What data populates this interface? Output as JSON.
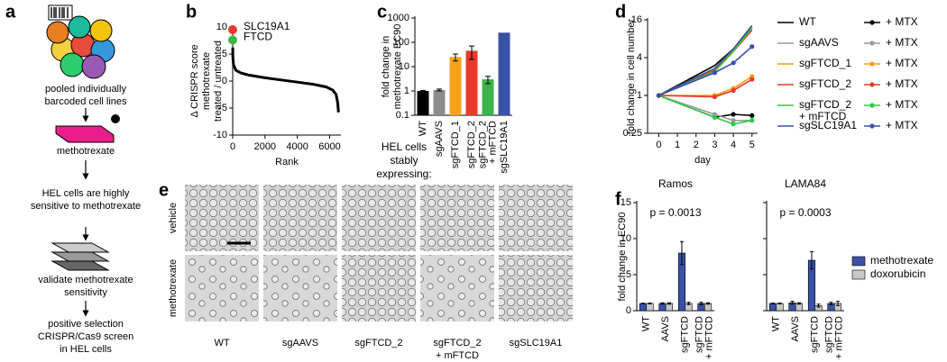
{
  "panel_labels": [
    "a",
    "b",
    "c",
    "d",
    "e",
    "f"
  ],
  "workflow": {
    "steps": [
      [
        "pooled individually",
        "barcoded cell lines"
      ],
      [
        "methotrexate"
      ],
      [
        "HEL cells are highly",
        "sensitive to methotrexate"
      ],
      [
        "validate methotrexate",
        "sensitivity"
      ],
      [
        "positive selection",
        "CRISPR/Cas9 screen",
        "in HEL cells"
      ]
    ]
  },
  "micrographs": {
    "rows": [
      "vehicle",
      "methotrexate"
    ],
    "columns": [
      [
        "WT"
      ],
      [
        "sgAAVS"
      ],
      [
        "sgFTCD_2"
      ],
      [
        "sgFTCD_2",
        "+ mFTCD"
      ],
      [
        "sgSLC19A1"
      ]
    ]
  },
  "chart_data": [
    {
      "type": "rank",
      "ylabel": [
        "Δ CRISPR score",
        "methotrexate",
        "treated / untreated"
      ],
      "xlabel": "Rank",
      "x": [
        3,
        10,
        50,
        200,
        500,
        1000,
        2000,
        3000,
        4000,
        5000,
        5800,
        6200,
        6400,
        6500,
        6550
      ],
      "values": [
        6.2,
        4.5,
        3,
        2,
        1.5,
        1.1,
        0.6,
        0.2,
        -0.2,
        -0.6,
        -1.1,
        -1.7,
        -2.5,
        -4,
        -5.8
      ],
      "color": "#000000",
      "highlights": [
        {
          "name": "SLC19A1",
          "x": 1,
          "value": 9.5,
          "color": "#e8392b"
        },
        {
          "name": "FTCD",
          "x": 2,
          "value": 7.6,
          "color": "#3cb44b"
        }
      ],
      "xlim": [
        0,
        6700
      ],
      "xticks": [
        0,
        2000,
        4000,
        6000
      ],
      "ylim": [
        -10,
        10
      ],
      "yticks": [
        -10,
        -5,
        0,
        5,
        10
      ]
    },
    {
      "type": "bar",
      "log_scale": true,
      "ylabel": [
        "fold change in",
        "methotrexate EC90"
      ],
      "categories": [
        "WT",
        "sgAAVS",
        "sgFTCD_1",
        "sgFTCD_2",
        [
          "sgFTCD_2",
          "+ mFTCD"
        ],
        "sgSLC19A1"
      ],
      "values": [
        1,
        1.1,
        25,
        45,
        3,
        250
      ],
      "errors": [
        0.05,
        0.1,
        8,
        25,
        1,
        null
      ],
      "colors": [
        "#000000",
        "#8c8c8c",
        "#f7a21b",
        "#e8392b",
        "#3cb44b",
        "#3a52a6"
      ],
      "ylim": [
        0.1,
        1000
      ],
      "yticks": [
        0.1,
        1,
        10,
        100,
        1000
      ],
      "caption": [
        "HEL cells",
        "stably",
        "expressing:"
      ]
    },
    {
      "type": "line",
      "log_scale": true,
      "xlabel": "day",
      "ylabel": "fold change in cell number",
      "x": [
        0,
        3,
        4,
        5
      ],
      "xlim": [
        -0.6,
        5.3
      ],
      "xticks": [
        0,
        1,
        2,
        3,
        4,
        5
      ],
      "ylim": [
        0.25,
        16
      ],
      "yticks": [
        0.25,
        1,
        4,
        16
      ],
      "series": [
        {
          "name": "WT",
          "color": "#000000",
          "markers": false,
          "values": [
            1,
            3,
            5.5,
            12
          ]
        },
        {
          "name": "+ MTX",
          "color": "#000000",
          "markers": true,
          "values": [
            1,
            0.45,
            0.5,
            0.48
          ]
        },
        {
          "name": "sgAAVS",
          "color": "#999999",
          "markers": false,
          "values": [
            1,
            2.5,
            5,
            11
          ]
        },
        {
          "name": "+ MTX",
          "color": "#999999",
          "markers": true,
          "values": [
            1,
            0.5,
            0.4,
            0.4
          ]
        },
        {
          "name": "sgFTCD_1",
          "color": "#f39c12",
          "markers": false,
          "values": [
            1,
            2.6,
            5.2,
            11.5
          ]
        },
        {
          "name": "+ MTX",
          "color": "#f39c12",
          "markers": true,
          "values": [
            1,
            1,
            1.3,
            2
          ]
        },
        {
          "name": "sgFTCD_2",
          "color": "#e8392b",
          "markers": false,
          "values": [
            1,
            2.5,
            5,
            11
          ]
        },
        {
          "name": "+ MTX",
          "color": "#e8392b",
          "markers": true,
          "values": [
            1,
            0.95,
            1.2,
            1.8
          ]
        },
        {
          "name": [
            "sgFTCD_2",
            "+ mFTCD"
          ],
          "color": "#2ecc40",
          "markers": false,
          "values": [
            1,
            2.4,
            5,
            12
          ]
        },
        {
          "name": "+ MTX",
          "color": "#2ecc40",
          "markers": true,
          "values": [
            1,
            0.45,
            0.35,
            0.4
          ]
        },
        {
          "name": "sgSLC19A1",
          "color": "#3a52a6",
          "markers": false,
          "values": [
            1,
            2.7,
            5.5,
            13
          ]
        },
        {
          "name": "+ MTX",
          "color": "#3a52a6",
          "markers": true,
          "values": [
            1,
            2.3,
            3.3,
            6
          ]
        }
      ]
    },
    {
      "type": "grouped_bar",
      "title": "Ramos",
      "annotation": "p = 0.0013",
      "ylabel": "fold change in EC90",
      "categories": [
        "WT",
        "AAVS",
        "sgFTCD",
        [
          "sgFTCD",
          "+ mFTCD"
        ]
      ],
      "ylim": [
        0,
        15
      ],
      "yticks": [
        0,
        5,
        10,
        15
      ],
      "series": [
        {
          "name": "methotrexate",
          "color": "#3a52a6",
          "values": [
            1,
            1,
            8,
            1
          ],
          "errors": [
            0.05,
            0.1,
            1.6,
            0.15
          ]
        },
        {
          "name": "doxorubicin",
          "color": "#c8c8c8",
          "values": [
            1,
            1,
            1,
            1
          ],
          "errors": [
            0.05,
            0.1,
            0.15,
            0.1
          ]
        }
      ]
    },
    {
      "type": "grouped_bar",
      "title": "LAMA84",
      "annotation": "p = 0.0003",
      "show_tick_labels": false,
      "categories": [
        "WT",
        "AAVS",
        "sgFTCD",
        [
          "sgFTCD",
          "+ mFTCD"
        ]
      ],
      "ylim": [
        0,
        15
      ],
      "yticks": [
        0,
        5,
        10,
        15
      ],
      "series": [
        {
          "color": "#3a52a6",
          "values": [
            1,
            1.1,
            7,
            1
          ],
          "errors": [
            0.05,
            0.2,
            1.2,
            0.15
          ]
        },
        {
          "color": "#c8c8c8",
          "values": [
            1,
            1,
            0.7,
            1
          ],
          "errors": [
            0.05,
            0.1,
            0.2,
            0.3
          ]
        }
      ]
    }
  ]
}
